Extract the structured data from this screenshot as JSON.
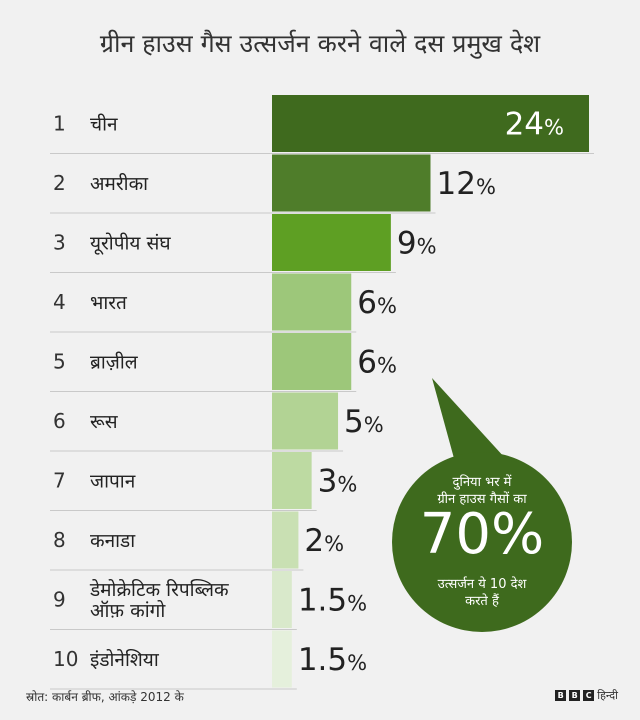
{
  "title": "ग्रीन हाउस गैस उत्सर्जन करने वाले दस प्रमुख देश",
  "chart_data": {
    "type": "bar",
    "orientation": "horizontal",
    "title": "ग्रीन हाउस गैस उत्सर्जन करने वाले दस प्रमुख देश",
    "ranks": [
      "1",
      "2",
      "3",
      "4",
      "5",
      "6",
      "7",
      "8",
      "9",
      "10"
    ],
    "categories": [
      [
        "चीन"
      ],
      [
        "अमरीका"
      ],
      [
        "यूरोपीय संघ"
      ],
      [
        "भारत"
      ],
      [
        "ब्राज़ील"
      ],
      [
        "रूस"
      ],
      [
        "जापान"
      ],
      [
        "कनाडा"
      ],
      [
        "डेमोक्रेटिक रिपब्लिक",
        "ऑफ़ कांगो"
      ],
      [
        "इंडोनेशिया"
      ]
    ],
    "values": [
      24,
      12,
      9,
      6,
      6,
      5,
      3,
      2,
      1.5,
      1.5
    ],
    "value_labels": [
      "24",
      "12",
      "9",
      "6",
      "6",
      "5",
      "3",
      "2",
      "1.5",
      "1.5"
    ],
    "unit": "%",
    "colors": [
      "#3f6a1e",
      "#4f7d2a",
      "#5e9f23",
      "#9dc77a",
      "#9dc77a",
      "#b2d394",
      "#bddaa2",
      "#c9e0b3",
      "#d9e9cb",
      "#e5f0dc"
    ],
    "xlim": [
      0,
      24
    ]
  },
  "callout": {
    "line1a": "दुनिया भर में",
    "line1b": "ग्रीन हाउस गैसों का",
    "big": "70%",
    "line2a": "उत्सर्जन ये 10 देश",
    "line2b": "करते हैं",
    "color": "#3e6a1d"
  },
  "footer": {
    "source": "स्रोत: कार्बन ब्रीफ, आंकड़े 2012 के",
    "brand_letters": [
      "B",
      "B",
      "C"
    ],
    "brand_word": "हिन्दी"
  }
}
